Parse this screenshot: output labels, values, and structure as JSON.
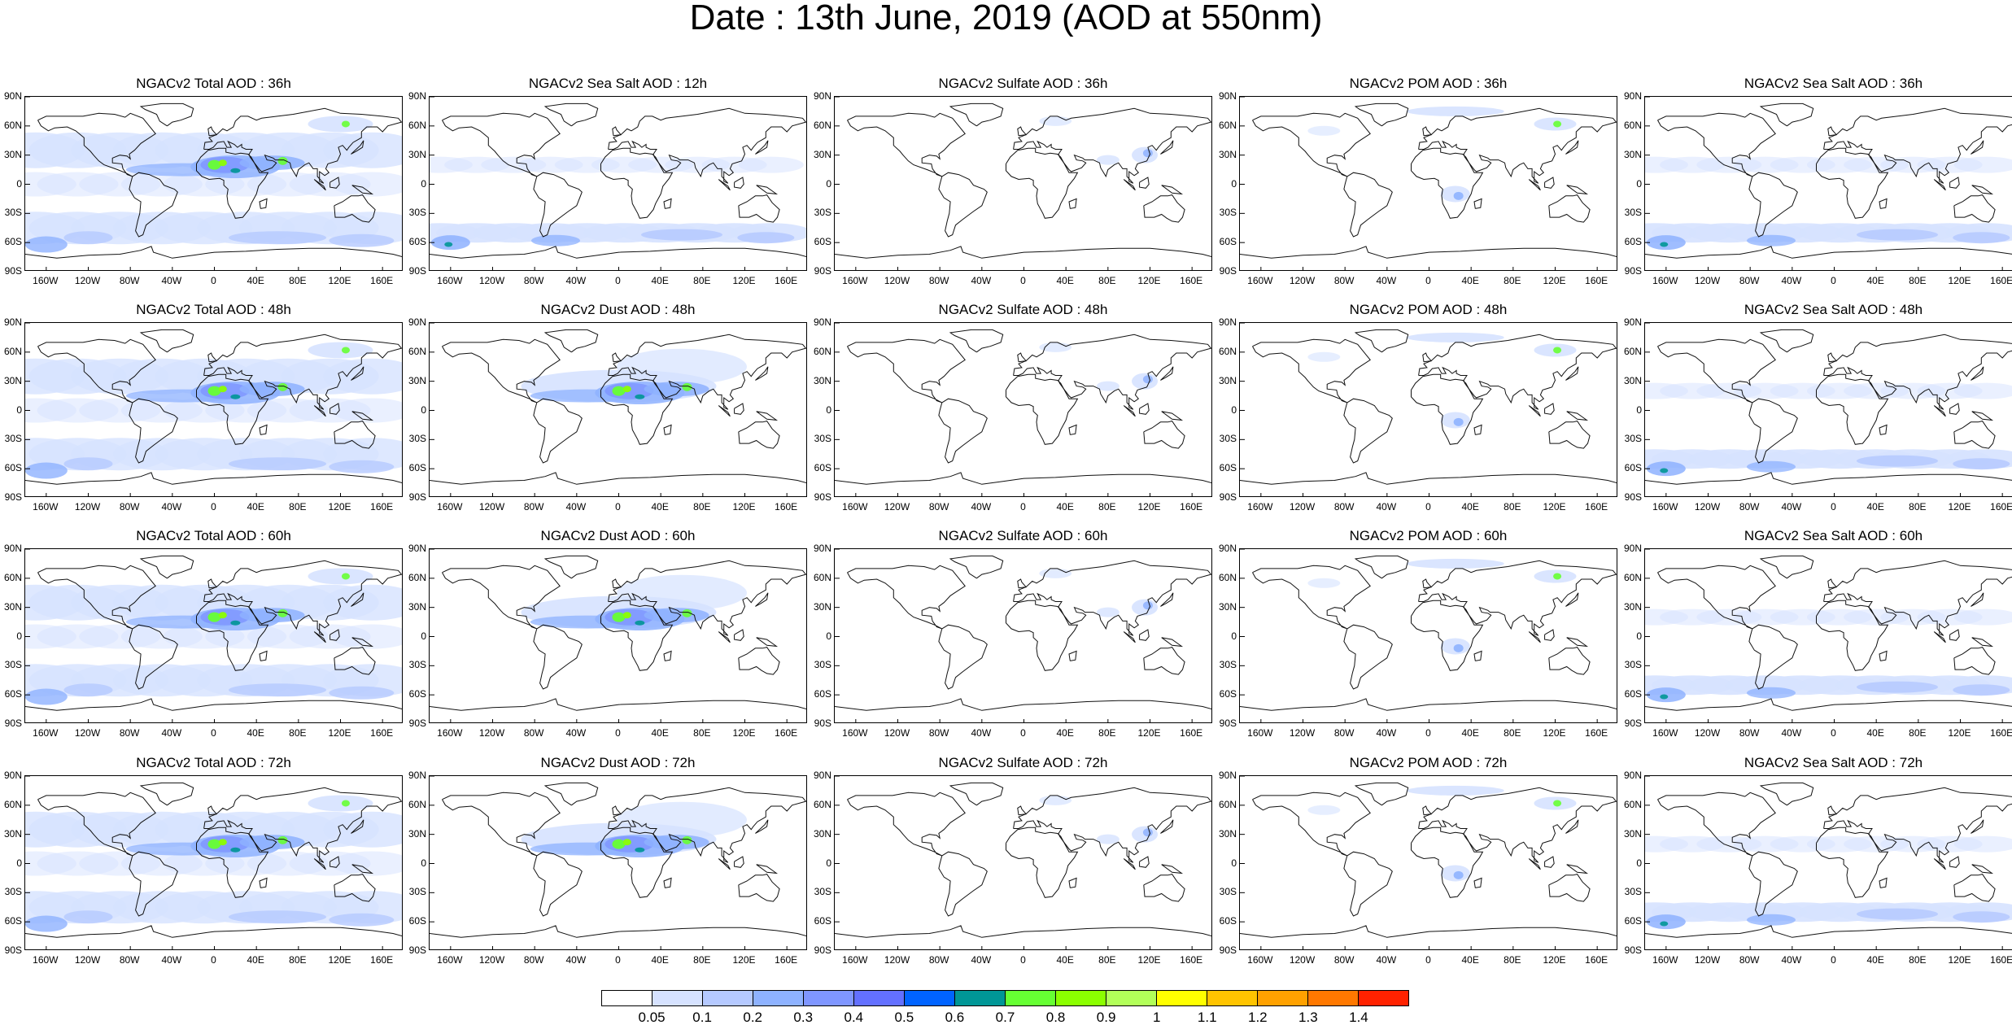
{
  "title": "Date : 13th June, 2019 (AOD at 550nm)",
  "lat_labels": [
    "90N",
    "60N",
    "30N",
    "0",
    "30S",
    "60S",
    "90S"
  ],
  "lon_labels": [
    "160W",
    "120W",
    "80W",
    "40W",
    "0",
    "40E",
    "80E",
    "120E",
    "160E"
  ],
  "panels": [
    [
      "NGACv2 Total AOD : 36h",
      "NGACv2 Sea Salt  AOD : 12h",
      "NGACv2 Sulfate AOD : 36h",
      "NGACv2 POM AOD : 36h",
      "NGACv2 Sea Salt AOD : 36h"
    ],
    [
      "NGACv2 Total AOD : 48h",
      "NGACv2 Dust AOD : 48h",
      "NGACv2 Sulfate AOD : 48h",
      "NGACv2 POM AOD : 48h",
      "NGACv2 Sea Salt AOD : 48h"
    ],
    [
      "NGACv2 Total AOD : 60h",
      "NGACv2 Dust AOD : 60h",
      "NGACv2 Sulfate AOD : 60h",
      "NGACv2 POM AOD : 60h",
      "NGACv2 Sea Salt AOD : 60h"
    ],
    [
      "NGACv2 Total AOD : 72h",
      "NGACv2 Dust AOD : 72h",
      "NGACv2 Sulfate AOD : 72h",
      "NGACv2 POM AOD : 72h",
      "NGACv2 Sea Salt  AOD : 72h"
    ]
  ],
  "colorbar": {
    "labels": [
      "0.05",
      "0.1",
      "0.2",
      "0.3",
      "0.4",
      "0.5",
      "0.6",
      "0.7",
      "0.8",
      "0.9",
      "1",
      "1.1",
      "1.2",
      "1.3",
      "1.4"
    ],
    "colors": [
      "#ffffff",
      "#d6e2ff",
      "#b5c9ff",
      "#8eb2ff",
      "#7f96ff",
      "#6370ff",
      "#0063ff",
      "#009696",
      "#66ff33",
      "#8bff00",
      "#b2ff59",
      "#ffff00",
      "#ffc400",
      "#ffa100",
      "#ff7800",
      "#ff2200"
    ]
  }
}
